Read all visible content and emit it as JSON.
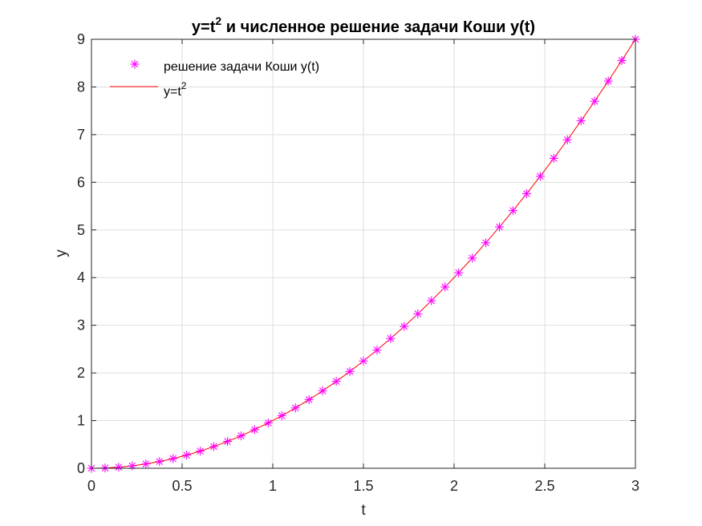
{
  "chart_data": {
    "type": "line",
    "title": "и численное решение задачи Коши y(t)",
    "title_prefix": "y=t",
    "title_superscript": "2",
    "xlabel": "t",
    "ylabel": "y",
    "xlim": [
      0,
      3
    ],
    "ylim": [
      0,
      9
    ],
    "xticks": [
      0,
      0.5,
      1,
      1.5,
      2,
      2.5,
      3
    ],
    "xtick_labels": [
      "0",
      "0.5",
      "1",
      "1.5",
      "2",
      "2.5",
      "3"
    ],
    "yticks": [
      0,
      1,
      2,
      3,
      4,
      5,
      6,
      7,
      8,
      9
    ],
    "ytick_labels": [
      "0",
      "1",
      "2",
      "3",
      "4",
      "5",
      "6",
      "7",
      "8",
      "9"
    ],
    "grid": true,
    "legend_position": "top-left",
    "series": [
      {
        "name": "решение задачи Коши y(t)",
        "style": "markers",
        "marker": "asterisk",
        "color": "#ff00ff",
        "x": [
          0,
          0.075,
          0.15,
          0.225,
          0.3,
          0.375,
          0.45,
          0.525,
          0.6,
          0.675,
          0.75,
          0.825,
          0.9,
          0.975,
          1.05,
          1.125,
          1.2,
          1.275,
          1.35,
          1.425,
          1.5,
          1.575,
          1.65,
          1.725,
          1.8,
          1.875,
          1.95,
          2.025,
          2.1,
          2.175,
          2.25,
          2.325,
          2.4,
          2.475,
          2.55,
          2.625,
          2.7,
          2.775,
          2.85,
          2.925,
          3.0
        ],
        "y": [
          0,
          0.0056,
          0.0225,
          0.0506,
          0.09,
          0.1406,
          0.2025,
          0.2756,
          0.36,
          0.4556,
          0.5625,
          0.6806,
          0.81,
          0.9506,
          1.1025,
          1.2656,
          1.44,
          1.6256,
          1.8225,
          2.0306,
          2.25,
          2.4806,
          2.7225,
          2.9756,
          3.24,
          3.5156,
          3.8025,
          4.1006,
          4.41,
          4.7306,
          5.0625,
          5.4056,
          5.76,
          6.1256,
          6.5025,
          6.8906,
          7.29,
          7.7006,
          8.1225,
          8.5556,
          9.0
        ]
      },
      {
        "name_prefix": "y=t",
        "name_superscript": "2",
        "style": "line",
        "color": "#ff0000",
        "x": [
          0,
          0.075,
          0.15,
          0.225,
          0.3,
          0.375,
          0.45,
          0.525,
          0.6,
          0.675,
          0.75,
          0.825,
          0.9,
          0.975,
          1.05,
          1.125,
          1.2,
          1.275,
          1.35,
          1.425,
          1.5,
          1.575,
          1.65,
          1.725,
          1.8,
          1.875,
          1.95,
          2.025,
          2.1,
          2.175,
          2.25,
          2.325,
          2.4,
          2.475,
          2.55,
          2.625,
          2.7,
          2.775,
          2.85,
          2.925,
          3.0
        ],
        "y": [
          0,
          0.0056,
          0.0225,
          0.0506,
          0.09,
          0.1406,
          0.2025,
          0.2756,
          0.36,
          0.4556,
          0.5625,
          0.6806,
          0.81,
          0.9506,
          1.1025,
          1.2656,
          1.44,
          1.6256,
          1.8225,
          2.0306,
          2.25,
          2.4806,
          2.7225,
          2.9756,
          3.24,
          3.5156,
          3.8025,
          4.1006,
          4.41,
          4.7306,
          5.0625,
          5.4056,
          5.76,
          6.1256,
          6.5025,
          6.8906,
          7.29,
          7.7006,
          8.1225,
          8.5556,
          9.0
        ]
      }
    ]
  }
}
